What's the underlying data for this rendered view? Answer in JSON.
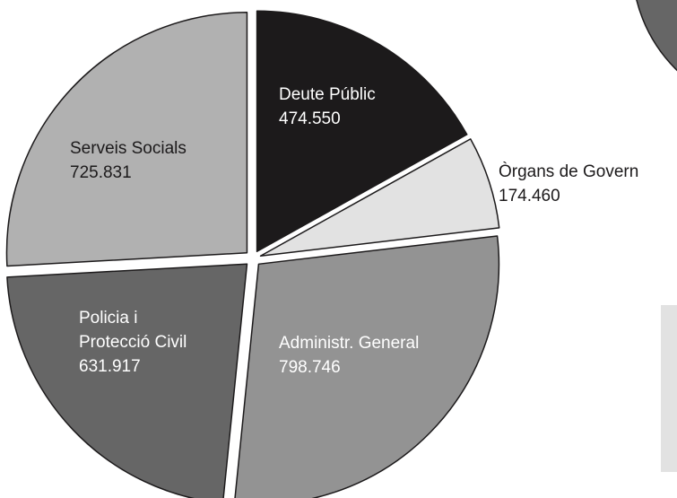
{
  "chart_data": {
    "type": "pie",
    "title": "",
    "slices": [
      {
        "label_lines": [
          "Deute Públic"
        ],
        "value": 474550,
        "value_label": "474.550",
        "color": "#1c1a1b",
        "text_color": "#ffffff"
      },
      {
        "label_lines": [
          "Òrgans de Govern"
        ],
        "value": 174460,
        "value_label": "174.460",
        "color": "#e2e2e2",
        "text_color": "#1c1a1b"
      },
      {
        "label_lines": [
          "Administr. General"
        ],
        "value": 798746,
        "value_label": "798.746",
        "color": "#939393",
        "text_color": "#ffffff"
      },
      {
        "label_lines": [
          "Policia i",
          "Protecció Civil"
        ],
        "value": 631917,
        "value_label": "631.917",
        "color": "#666666",
        "text_color": "#ffffff"
      },
      {
        "label_lines": [
          "Serveis Socials"
        ],
        "value": 725831,
        "value_label": "725.831",
        "color": "#b1b1b1",
        "text_color": "#1c1a1b"
      }
    ],
    "legend": "none"
  },
  "decor": {
    "partial_circle_color": "#666666",
    "partial_box_color": "#e2e2e2"
  }
}
